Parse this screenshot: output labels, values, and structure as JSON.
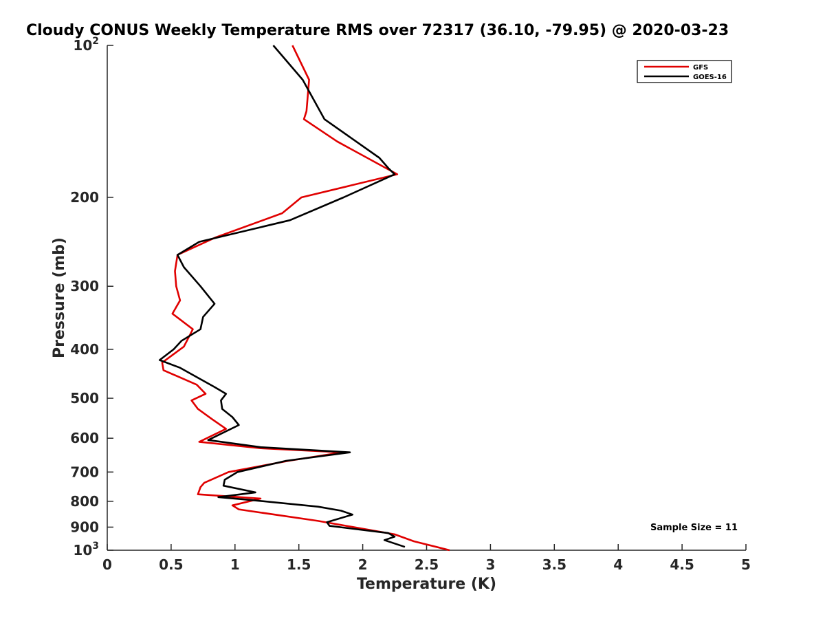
{
  "chart_data": {
    "type": "line",
    "title": "Cloudy CONUS Weekly Temperature RMS over 72317 (36.10, -79.95) @ 2020-03-23",
    "xlabel": "Temperature (K)",
    "ylabel": "Pressure (mb)",
    "xlim": [
      0,
      5
    ],
    "ylim": [
      100,
      1000
    ],
    "y_scale": "log",
    "y_reversed": true,
    "grid": false,
    "legend_position": "top-right",
    "x_ticks": [
      0,
      0.5,
      1,
      1.5,
      2,
      2.5,
      3,
      3.5,
      4,
      4.5,
      5
    ],
    "x_tick_labels": [
      "0",
      "0.5",
      "1",
      "1.5",
      "2",
      "2.5",
      "3",
      "3.5",
      "4",
      "4.5",
      "5"
    ],
    "y_ticks": [
      100,
      200,
      300,
      400,
      500,
      600,
      700,
      800,
      900,
      1000
    ],
    "y_tick_labels": [
      {
        "base": "10",
        "exp": "2"
      },
      {
        "base": "200",
        "exp": ""
      },
      {
        "base": "300",
        "exp": ""
      },
      {
        "base": "400",
        "exp": ""
      },
      {
        "base": "500",
        "exp": ""
      },
      {
        "base": "600",
        "exp": ""
      },
      {
        "base": "700",
        "exp": ""
      },
      {
        "base": "800",
        "exp": ""
      },
      {
        "base": "900",
        "exp": ""
      },
      {
        "base": "10",
        "exp": "3"
      }
    ],
    "series": [
      {
        "name": "GFS",
        "color": "#e00000",
        "points": [
          [
            1.45,
            100
          ],
          [
            1.58,
            117
          ],
          [
            1.56,
            135
          ],
          [
            1.54,
            140
          ],
          [
            1.8,
            155
          ],
          [
            2.27,
            180
          ],
          [
            1.52,
            200
          ],
          [
            1.37,
            215
          ],
          [
            0.85,
            240
          ],
          [
            0.55,
            260
          ],
          [
            0.53,
            280
          ],
          [
            0.54,
            300
          ],
          [
            0.57,
            320
          ],
          [
            0.51,
            340
          ],
          [
            0.67,
            365
          ],
          [
            0.6,
            395
          ],
          [
            0.43,
            425
          ],
          [
            0.44,
            440
          ],
          [
            0.7,
            470
          ],
          [
            0.77,
            490
          ],
          [
            0.66,
            505
          ],
          [
            0.71,
            525
          ],
          [
            0.82,
            550
          ],
          [
            0.93,
            575
          ],
          [
            0.72,
            610
          ],
          [
            1.2,
            628
          ],
          [
            1.84,
            640
          ],
          [
            1.42,
            665
          ],
          [
            0.95,
            700
          ],
          [
            0.76,
            735
          ],
          [
            0.73,
            750
          ],
          [
            0.71,
            775
          ],
          [
            1.2,
            790
          ],
          [
            0.98,
            815
          ],
          [
            1.03,
            830
          ],
          [
            1.65,
            875
          ],
          [
            2.25,
            930
          ],
          [
            2.4,
            960
          ],
          [
            2.68,
            1000
          ]
        ]
      },
      {
        "name": "GOES-16",
        "color": "#000000",
        "points": [
          [
            1.3,
            100
          ],
          [
            1.53,
            117
          ],
          [
            1.7,
            140
          ],
          [
            2.13,
            167
          ],
          [
            2.2,
            175
          ],
          [
            2.25,
            180
          ],
          [
            1.85,
            200
          ],
          [
            1.43,
            222
          ],
          [
            0.72,
            245
          ],
          [
            0.55,
            260
          ],
          [
            0.6,
            275
          ],
          [
            0.73,
            300
          ],
          [
            0.84,
            325
          ],
          [
            0.75,
            345
          ],
          [
            0.73,
            365
          ],
          [
            0.58,
            385
          ],
          [
            0.52,
            400
          ],
          [
            0.41,
            420
          ],
          [
            0.57,
            435
          ],
          [
            0.84,
            475
          ],
          [
            0.93,
            490
          ],
          [
            0.89,
            505
          ],
          [
            0.9,
            525
          ],
          [
            0.98,
            545
          ],
          [
            1.03,
            565
          ],
          [
            0.79,
            605
          ],
          [
            1.2,
            625
          ],
          [
            1.9,
            640
          ],
          [
            1.4,
            665
          ],
          [
            1.02,
            700
          ],
          [
            0.92,
            725
          ],
          [
            0.91,
            745
          ],
          [
            1.16,
            768
          ],
          [
            0.87,
            785
          ],
          [
            1.12,
            795
          ],
          [
            1.65,
            820
          ],
          [
            1.83,
            835
          ],
          [
            1.92,
            850
          ],
          [
            1.72,
            880
          ],
          [
            1.74,
            895
          ],
          [
            2.2,
            925
          ],
          [
            2.25,
            940
          ],
          [
            2.17,
            955
          ],
          [
            2.33,
            985
          ]
        ]
      }
    ],
    "legend": [
      "GFS",
      "GOES-16"
    ],
    "annotation": "Sample Size = 11"
  }
}
